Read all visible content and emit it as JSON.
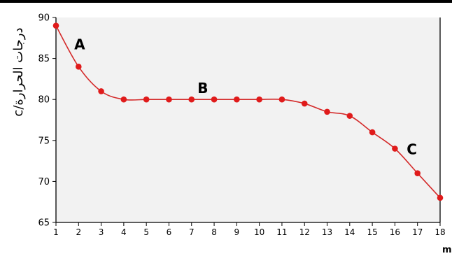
{
  "chart_data": {
    "type": "line",
    "ylabel": "درجات الحرارة/c",
    "xlabel": "الزمن /min",
    "x": [
      1,
      2,
      3,
      4,
      5,
      6,
      7,
      8,
      9,
      10,
      11,
      12,
      13,
      14,
      15,
      16,
      17,
      18
    ],
    "series": [
      {
        "values": [
          89,
          84,
          81,
          80,
          80,
          80,
          80,
          80,
          80,
          80,
          80,
          79.5,
          78.5,
          78,
          76,
          74,
          71,
          68
        ]
      }
    ],
    "xlim": [
      1,
      18
    ],
    "ylim": [
      65,
      90
    ],
    "x_ticks": [
      "1",
      "2",
      "3",
      "4",
      "5",
      "6",
      "7",
      "8",
      "9",
      "10",
      "11",
      "12",
      "13",
      "14",
      "15",
      "16",
      "17",
      "18"
    ],
    "y_ticks": [
      "65",
      "70",
      "75",
      "80",
      "85",
      "90"
    ],
    "annotations": [
      {
        "text": "A",
        "x": 2.05,
        "y": 86.1
      },
      {
        "text": "B",
        "x": 7.5,
        "y": 80.8
      },
      {
        "text": "C",
        "x": 16.75,
        "y": 73.3
      }
    ],
    "grid": false,
    "colors": {
      "line": "#d42a2a",
      "marker": "#e01b1b",
      "plot_bg": "#f2f2f2",
      "axis": "#000000"
    }
  }
}
